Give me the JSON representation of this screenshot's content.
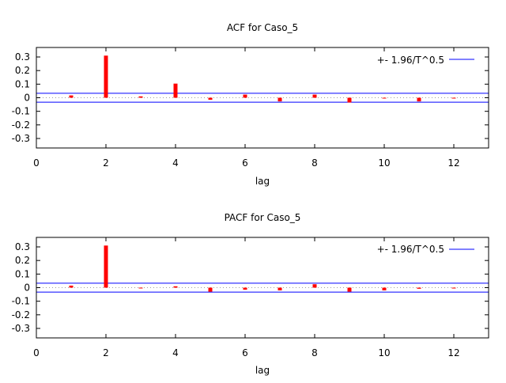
{
  "chart_data": [
    {
      "type": "bar",
      "title": "ACF for Caso_5",
      "xlabel": "lag",
      "ylabel": "",
      "xlim": [
        0,
        13
      ],
      "ylim": [
        -0.37,
        0.37
      ],
      "xticks": [
        0,
        2,
        4,
        6,
        8,
        10,
        12
      ],
      "yticks": [
        0.3,
        0.2,
        0.1,
        0,
        -0.1,
        -0.2,
        -0.3
      ],
      "x": [
        1,
        2,
        3,
        4,
        5,
        6,
        7,
        8,
        9,
        10,
        11,
        12
      ],
      "values": [
        0.017,
        0.31,
        0.01,
        0.104,
        -0.015,
        0.023,
        -0.027,
        0.023,
        -0.035,
        0.0,
        -0.027,
        -0.003
      ],
      "band": 0.033,
      "legend": {
        "label": "+- 1.96/T^0.5",
        "position": "top-right"
      },
      "grid": false
    },
    {
      "type": "bar",
      "title": "PACF for Caso_5",
      "xlabel": "lag",
      "ylabel": "",
      "xlim": [
        0,
        13
      ],
      "ylim": [
        -0.37,
        0.37
      ],
      "xticks": [
        0,
        2,
        4,
        6,
        8,
        10,
        12
      ],
      "yticks": [
        0.3,
        0.2,
        0.1,
        0,
        -0.1,
        -0.2,
        -0.3
      ],
      "x": [
        1,
        2,
        3,
        4,
        5,
        6,
        7,
        8,
        9,
        10,
        11,
        12
      ],
      "values": [
        0.015,
        0.31,
        -0.003,
        0.01,
        -0.03,
        -0.015,
        -0.02,
        0.025,
        -0.03,
        -0.02,
        -0.008,
        -0.006
      ],
      "band": 0.033,
      "legend": {
        "label": "+- 1.96/T^0.5",
        "position": "top-right"
      },
      "grid": false
    }
  ],
  "colors": {
    "bar": "#ff0000",
    "band": "#0000ff",
    "zero": "#a0a0a0"
  }
}
